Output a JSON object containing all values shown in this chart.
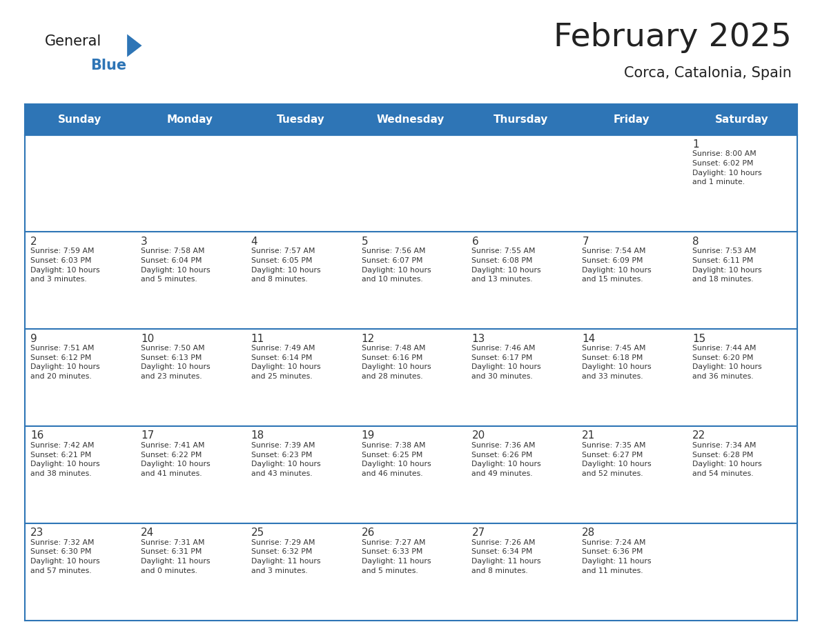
{
  "title": "February 2025",
  "subtitle": "Corca, Catalonia, Spain",
  "header_color": "#2E75B6",
  "header_text_color": "#FFFFFF",
  "cell_bg_color": "#FFFFFF",
  "border_color": "#2E75B6",
  "text_color": "#333333",
  "days_of_week": [
    "Sunday",
    "Monday",
    "Tuesday",
    "Wednesday",
    "Thursday",
    "Friday",
    "Saturday"
  ],
  "calendar_data": [
    [
      null,
      null,
      null,
      null,
      null,
      null,
      {
        "day": 1,
        "sunrise": "8:00 AM",
        "sunset": "6:02 PM",
        "daylight": "10 hours\nand 1 minute."
      }
    ],
    [
      {
        "day": 2,
        "sunrise": "7:59 AM",
        "sunset": "6:03 PM",
        "daylight": "10 hours\nand 3 minutes."
      },
      {
        "day": 3,
        "sunrise": "7:58 AM",
        "sunset": "6:04 PM",
        "daylight": "10 hours\nand 5 minutes."
      },
      {
        "day": 4,
        "sunrise": "7:57 AM",
        "sunset": "6:05 PM",
        "daylight": "10 hours\nand 8 minutes."
      },
      {
        "day": 5,
        "sunrise": "7:56 AM",
        "sunset": "6:07 PM",
        "daylight": "10 hours\nand 10 minutes."
      },
      {
        "day": 6,
        "sunrise": "7:55 AM",
        "sunset": "6:08 PM",
        "daylight": "10 hours\nand 13 minutes."
      },
      {
        "day": 7,
        "sunrise": "7:54 AM",
        "sunset": "6:09 PM",
        "daylight": "10 hours\nand 15 minutes."
      },
      {
        "day": 8,
        "sunrise": "7:53 AM",
        "sunset": "6:11 PM",
        "daylight": "10 hours\nand 18 minutes."
      }
    ],
    [
      {
        "day": 9,
        "sunrise": "7:51 AM",
        "sunset": "6:12 PM",
        "daylight": "10 hours\nand 20 minutes."
      },
      {
        "day": 10,
        "sunrise": "7:50 AM",
        "sunset": "6:13 PM",
        "daylight": "10 hours\nand 23 minutes."
      },
      {
        "day": 11,
        "sunrise": "7:49 AM",
        "sunset": "6:14 PM",
        "daylight": "10 hours\nand 25 minutes."
      },
      {
        "day": 12,
        "sunrise": "7:48 AM",
        "sunset": "6:16 PM",
        "daylight": "10 hours\nand 28 minutes."
      },
      {
        "day": 13,
        "sunrise": "7:46 AM",
        "sunset": "6:17 PM",
        "daylight": "10 hours\nand 30 minutes."
      },
      {
        "day": 14,
        "sunrise": "7:45 AM",
        "sunset": "6:18 PM",
        "daylight": "10 hours\nand 33 minutes."
      },
      {
        "day": 15,
        "sunrise": "7:44 AM",
        "sunset": "6:20 PM",
        "daylight": "10 hours\nand 36 minutes."
      }
    ],
    [
      {
        "day": 16,
        "sunrise": "7:42 AM",
        "sunset": "6:21 PM",
        "daylight": "10 hours\nand 38 minutes."
      },
      {
        "day": 17,
        "sunrise": "7:41 AM",
        "sunset": "6:22 PM",
        "daylight": "10 hours\nand 41 minutes."
      },
      {
        "day": 18,
        "sunrise": "7:39 AM",
        "sunset": "6:23 PM",
        "daylight": "10 hours\nand 43 minutes."
      },
      {
        "day": 19,
        "sunrise": "7:38 AM",
        "sunset": "6:25 PM",
        "daylight": "10 hours\nand 46 minutes."
      },
      {
        "day": 20,
        "sunrise": "7:36 AM",
        "sunset": "6:26 PM",
        "daylight": "10 hours\nand 49 minutes."
      },
      {
        "day": 21,
        "sunrise": "7:35 AM",
        "sunset": "6:27 PM",
        "daylight": "10 hours\nand 52 minutes."
      },
      {
        "day": 22,
        "sunrise": "7:34 AM",
        "sunset": "6:28 PM",
        "daylight": "10 hours\nand 54 minutes."
      }
    ],
    [
      {
        "day": 23,
        "sunrise": "7:32 AM",
        "sunset": "6:30 PM",
        "daylight": "10 hours\nand 57 minutes."
      },
      {
        "day": 24,
        "sunrise": "7:31 AM",
        "sunset": "6:31 PM",
        "daylight": "11 hours\nand 0 minutes."
      },
      {
        "day": 25,
        "sunrise": "7:29 AM",
        "sunset": "6:32 PM",
        "daylight": "11 hours\nand 3 minutes."
      },
      {
        "day": 26,
        "sunrise": "7:27 AM",
        "sunset": "6:33 PM",
        "daylight": "11 hours\nand 5 minutes."
      },
      {
        "day": 27,
        "sunrise": "7:26 AM",
        "sunset": "6:34 PM",
        "daylight": "11 hours\nand 8 minutes."
      },
      {
        "day": 28,
        "sunrise": "7:24 AM",
        "sunset": "6:36 PM",
        "daylight": "11 hours\nand 11 minutes."
      },
      null
    ]
  ],
  "logo_color_general": "#1a1a1a",
  "logo_color_blue": "#2E75B6",
  "logo_triangle_color": "#2E75B6",
  "fig_width": 11.88,
  "fig_height": 9.18,
  "dpi": 100
}
